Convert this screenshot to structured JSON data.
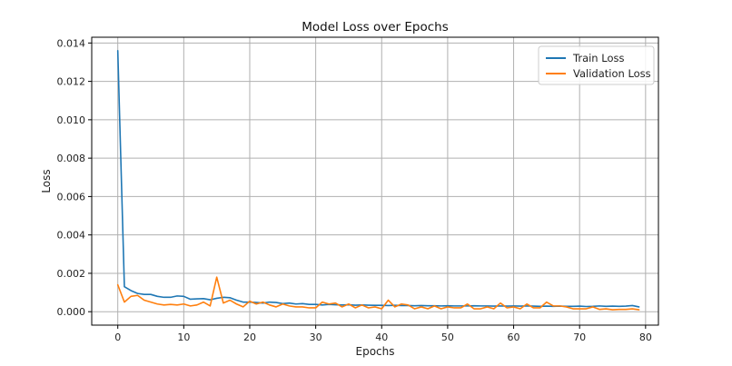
{
  "chart_data": {
    "type": "line",
    "title": "Model Loss over Epochs",
    "xlabel": "Epochs",
    "ylabel": "Loss",
    "xlim": [
      -3.95,
      81.95
    ],
    "ylim": [
      -0.0007,
      0.0143
    ],
    "xticks": [
      0,
      10,
      20,
      30,
      40,
      50,
      60,
      70,
      80
    ],
    "xtick_labels": [
      "0",
      "10",
      "20",
      "30",
      "40",
      "50",
      "60",
      "70",
      "80"
    ],
    "yticks": [
      0.0,
      0.002,
      0.004,
      0.006,
      0.008,
      0.01,
      0.012,
      0.014
    ],
    "ytick_labels": [
      "0.000",
      "0.002",
      "0.004",
      "0.006",
      "0.008",
      "0.010",
      "0.012",
      "0.014"
    ],
    "grid": true,
    "legend_position": "top-right",
    "x": [
      0,
      1,
      2,
      3,
      4,
      5,
      6,
      7,
      8,
      9,
      10,
      11,
      12,
      13,
      14,
      15,
      16,
      17,
      18,
      19,
      20,
      21,
      22,
      23,
      24,
      25,
      26,
      27,
      28,
      29,
      30,
      31,
      32,
      33,
      34,
      35,
      36,
      37,
      38,
      39,
      40,
      41,
      42,
      43,
      44,
      45,
      46,
      47,
      48,
      49,
      50,
      51,
      52,
      53,
      54,
      55,
      56,
      57,
      58,
      59,
      60,
      61,
      62,
      63,
      64,
      65,
      66,
      67,
      68,
      69,
      70,
      71,
      72,
      73,
      74,
      75,
      76,
      77,
      78,
      79
    ],
    "series": [
      {
        "name": "Train Loss",
        "color": "#1f77b4",
        "values": [
          0.0136,
          0.0013,
          0.0011,
          0.00095,
          0.0009,
          0.0009,
          0.0008,
          0.00075,
          0.00075,
          0.00082,
          0.0008,
          0.00065,
          0.00067,
          0.00068,
          0.00062,
          0.0007,
          0.00075,
          0.00073,
          0.0006,
          0.0005,
          0.0005,
          0.00048,
          0.00045,
          0.0005,
          0.00048,
          0.00042,
          0.00045,
          0.0004,
          0.00042,
          0.00038,
          0.00038,
          0.00035,
          0.00038,
          0.00036,
          0.00035,
          0.00036,
          0.00034,
          0.00035,
          0.00034,
          0.00033,
          0.00033,
          0.00032,
          0.00033,
          0.00032,
          0.00032,
          0.00031,
          0.00032,
          0.00031,
          0.00031,
          0.0003,
          0.00031,
          0.0003,
          0.0003,
          0.0003,
          0.00031,
          0.0003,
          0.0003,
          0.00029,
          0.0003,
          0.00029,
          0.0003,
          0.00029,
          0.0003,
          0.00029,
          0.00028,
          0.00029,
          0.00028,
          0.00029,
          0.00028,
          0.00028,
          0.00029,
          0.00027,
          0.00028,
          0.0003,
          0.00028,
          0.00029,
          0.00028,
          0.00029,
          0.00032,
          0.00025
        ]
      },
      {
        "name": "Validation Loss",
        "color": "#ff7f0e",
        "values": [
          0.0014,
          0.0005,
          0.0008,
          0.00085,
          0.0006,
          0.0005,
          0.0004,
          0.00035,
          0.00038,
          0.00035,
          0.0004,
          0.0003,
          0.00035,
          0.0005,
          0.0003,
          0.0018,
          0.00045,
          0.0006,
          0.0004,
          0.00025,
          0.00055,
          0.0004,
          0.0005,
          0.00035,
          0.00025,
          0.0004,
          0.0003,
          0.00025,
          0.00025,
          0.0002,
          0.0002,
          0.0005,
          0.0004,
          0.00045,
          0.00025,
          0.0004,
          0.0002,
          0.00035,
          0.0002,
          0.00025,
          0.00015,
          0.0006,
          0.00025,
          0.0004,
          0.00035,
          0.00015,
          0.00025,
          0.00015,
          0.0003,
          0.00015,
          0.00025,
          0.0002,
          0.0002,
          0.0004,
          0.00015,
          0.00015,
          0.00025,
          0.00015,
          0.00045,
          0.0002,
          0.00025,
          0.00015,
          0.0004,
          0.0002,
          0.0002,
          0.0005,
          0.0003,
          0.0003,
          0.00025,
          0.00015,
          0.00015,
          0.00015,
          0.00025,
          0.00012,
          0.00015,
          0.0001,
          0.00012,
          0.00012,
          0.00015,
          0.0001
        ]
      }
    ]
  }
}
